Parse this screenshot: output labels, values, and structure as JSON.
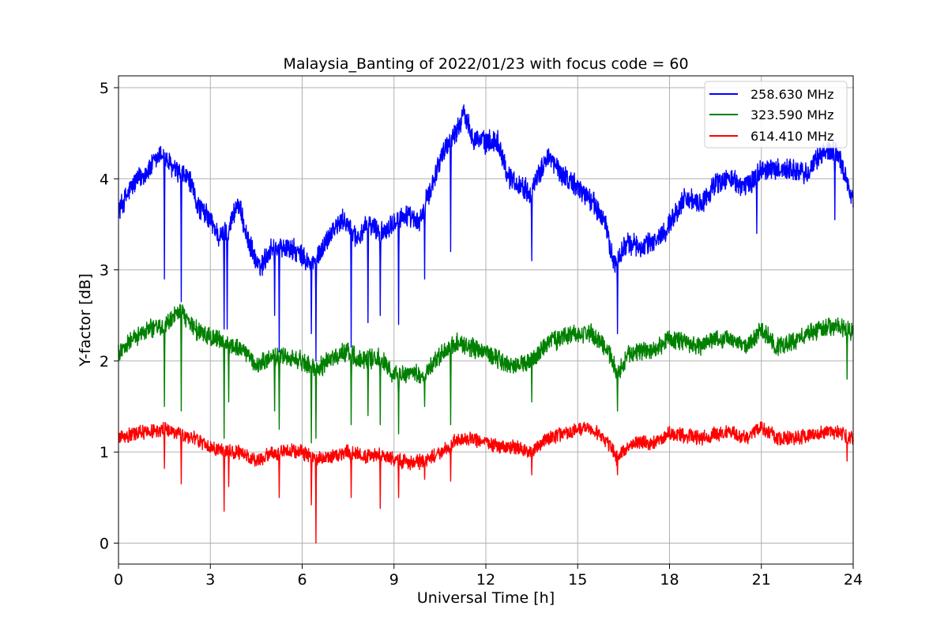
{
  "chart_data": {
    "type": "line",
    "title": "Malaysia_Banting of 2022/01/23 with focus code = 60",
    "xlabel": "Universal Time [h]",
    "ylabel": "Y-factor [dB]",
    "xlim": [
      0,
      24
    ],
    "ylim": [
      -0.23,
      5.13
    ],
    "xticks": [
      0,
      3,
      6,
      9,
      12,
      15,
      18,
      21,
      24
    ],
    "xtick_labels": [
      "0",
      "3",
      "6",
      "9",
      "12",
      "15",
      "18",
      "21",
      "24"
    ],
    "yticks": [
      0,
      1,
      2,
      3,
      4,
      5
    ],
    "ytick_labels": [
      "0",
      "1",
      "2",
      "3",
      "4",
      "5"
    ],
    "grid": true,
    "legend_position": "top-right",
    "series": [
      {
        "name": "258.630 MHz",
        "color": "#0000ff",
        "noise": 0.14,
        "x": [
          0,
          0.5,
          1.0,
          1.4,
          1.8,
          2.3,
          2.6,
          3.0,
          3.3,
          3.6,
          3.9,
          4.2,
          4.6,
          5.0,
          5.4,
          5.8,
          6.3,
          6.6,
          7.0,
          7.4,
          7.8,
          8.2,
          8.6,
          9.0,
          9.4,
          9.8,
          10.2,
          10.6,
          11.0,
          11.3,
          11.6,
          12.0,
          12.4,
          12.7,
          13.0,
          13.5,
          14.0,
          14.5,
          15.0,
          15.5,
          15.9,
          16.2,
          16.6,
          17.0,
          17.5,
          18.0,
          18.5,
          19.0,
          19.5,
          20.0,
          20.5,
          21.0,
          21.5,
          22.0,
          22.5,
          23.0,
          23.5,
          24.0
        ],
        "y": [
          3.65,
          3.95,
          4.1,
          4.28,
          4.1,
          4.0,
          3.7,
          3.55,
          3.35,
          3.45,
          3.75,
          3.35,
          3.0,
          3.25,
          3.25,
          3.2,
          3.05,
          3.2,
          3.45,
          3.55,
          3.35,
          3.5,
          3.4,
          3.55,
          3.6,
          3.5,
          3.9,
          4.3,
          4.5,
          4.72,
          4.45,
          4.4,
          4.42,
          4.05,
          3.95,
          3.85,
          4.25,
          4.05,
          3.9,
          3.75,
          3.5,
          3.05,
          3.3,
          3.25,
          3.3,
          3.5,
          3.8,
          3.7,
          3.95,
          4.0,
          3.9,
          4.1,
          4.1,
          4.1,
          4.05,
          4.3,
          4.3,
          3.75
        ],
        "dip_x": [
          1.5,
          2.05,
          3.45,
          3.55,
          5.1,
          5.25,
          6.3,
          6.45,
          7.6,
          8.15,
          8.55,
          9.15,
          10.0,
          10.85,
          13.5,
          16.3,
          20.85,
          23.4
        ],
        "dip_y": [
          2.9,
          2.65,
          2.35,
          2.35,
          2.5,
          2.1,
          2.3,
          2.0,
          2.15,
          2.42,
          2.5,
          2.4,
          2.9,
          3.2,
          3.1,
          2.3,
          3.4,
          3.55
        ]
      },
      {
        "name": "323.590 MHz",
        "color": "#008000",
        "noise": 0.12,
        "x": [
          0,
          0.5,
          1.0,
          1.5,
          2.0,
          2.5,
          3.0,
          3.5,
          4.0,
          4.5,
          5.0,
          5.5,
          6.0,
          6.5,
          7.0,
          7.5,
          8.0,
          8.5,
          9.0,
          9.5,
          10.0,
          10.5,
          11.0,
          11.5,
          12.0,
          12.5,
          13.0,
          13.5,
          14.0,
          14.5,
          15.0,
          15.5,
          16.0,
          16.3,
          16.6,
          17.0,
          17.5,
          18.0,
          18.5,
          19.0,
          19.5,
          20.0,
          20.5,
          21.0,
          21.5,
          22.0,
          22.5,
          23.0,
          23.5,
          24.0
        ],
        "y": [
          2.1,
          2.25,
          2.35,
          2.4,
          2.55,
          2.35,
          2.25,
          2.2,
          2.15,
          1.95,
          2.05,
          2.05,
          2.0,
          1.9,
          2.05,
          2.1,
          2.0,
          2.05,
          1.85,
          1.85,
          1.85,
          2.05,
          2.2,
          2.15,
          2.1,
          2.0,
          1.95,
          2.0,
          2.2,
          2.25,
          2.3,
          2.3,
          2.1,
          1.85,
          2.05,
          2.1,
          2.1,
          2.25,
          2.2,
          2.15,
          2.25,
          2.25,
          2.15,
          2.35,
          2.15,
          2.2,
          2.3,
          2.35,
          2.4,
          2.3
        ],
        "dip_x": [
          1.5,
          2.05,
          3.45,
          3.6,
          5.1,
          5.25,
          6.3,
          6.45,
          7.6,
          8.15,
          8.55,
          9.15,
          10.0,
          10.85,
          13.5,
          16.3,
          23.8
        ],
        "dip_y": [
          1.5,
          1.45,
          1.15,
          1.55,
          1.45,
          1.25,
          1.1,
          1.15,
          1.3,
          1.4,
          1.3,
          1.2,
          1.5,
          1.3,
          1.55,
          1.45,
          1.8
        ]
      },
      {
        "name": "614.410 MHz",
        "color": "#ff0000",
        "noise": 0.09,
        "x": [
          0,
          0.5,
          1.0,
          1.5,
          2.0,
          2.5,
          3.0,
          3.5,
          4.0,
          4.5,
          5.0,
          5.5,
          6.0,
          6.5,
          7.0,
          7.5,
          8.0,
          8.5,
          9.0,
          9.5,
          10.0,
          10.5,
          11.0,
          11.5,
          12.0,
          12.5,
          13.0,
          13.5,
          14.0,
          14.5,
          15.0,
          15.5,
          16.0,
          16.3,
          16.6,
          17.0,
          17.5,
          18.0,
          18.5,
          19.0,
          19.5,
          20.0,
          20.5,
          21.0,
          21.5,
          22.0,
          22.5,
          23.0,
          23.5,
          24.0
        ],
        "y": [
          1.15,
          1.2,
          1.22,
          1.25,
          1.2,
          1.15,
          1.05,
          1.0,
          1.0,
          0.9,
          0.98,
          1.02,
          1.0,
          0.92,
          0.95,
          1.0,
          0.95,
          0.98,
          0.92,
          0.88,
          0.9,
          1.0,
          1.12,
          1.15,
          1.1,
          1.05,
          1.05,
          1.0,
          1.15,
          1.2,
          1.25,
          1.25,
          1.1,
          0.92,
          1.05,
          1.1,
          1.1,
          1.2,
          1.18,
          1.15,
          1.2,
          1.22,
          1.15,
          1.28,
          1.15,
          1.15,
          1.18,
          1.2,
          1.22,
          1.15
        ],
        "dip_x": [
          1.5,
          2.05,
          3.45,
          3.6,
          5.25,
          6.3,
          6.45,
          7.6,
          8.55,
          9.15,
          10.0,
          10.85,
          13.5,
          16.3,
          23.8
        ],
        "dip_y": [
          0.82,
          0.65,
          0.35,
          0.62,
          0.5,
          0.42,
          0.0,
          0.5,
          0.38,
          0.5,
          0.7,
          0.68,
          0.75,
          0.75,
          0.9
        ]
      }
    ]
  }
}
